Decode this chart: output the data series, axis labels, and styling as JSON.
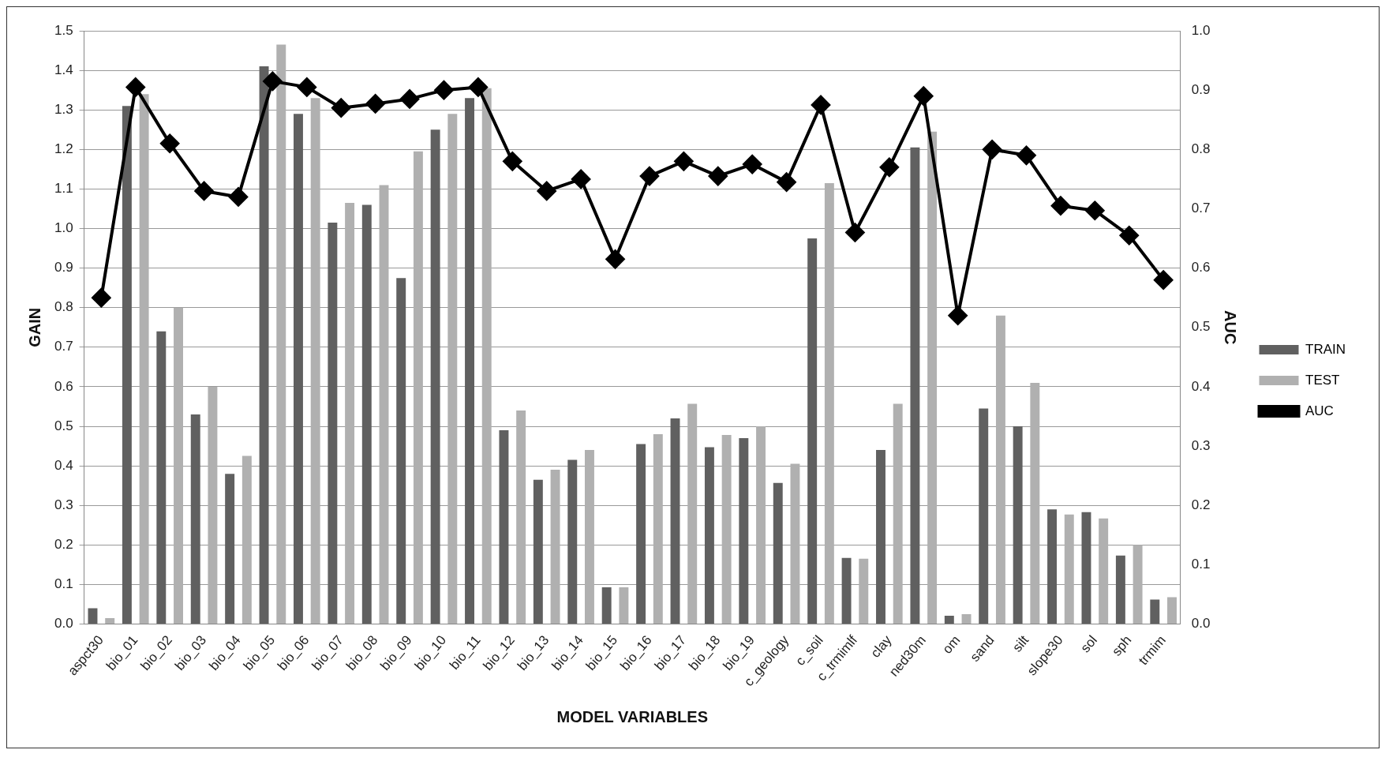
{
  "chart_data": {
    "type": "bar",
    "xlabel": "MODEL VARIABLES",
    "ylabel": "GAIN",
    "y2label": "AUC",
    "categories": [
      "aspct30",
      "bio_01",
      "bio_02",
      "bio_03",
      "bio_04",
      "bio_05",
      "bio_06",
      "bio_07",
      "bio_08",
      "bio_09",
      "bio_10",
      "bio_11",
      "bio_12",
      "bio_13",
      "bio_14",
      "bio_15",
      "bio_16",
      "bio_17",
      "bio_18",
      "bio_19",
      "c_geology",
      "c_soil",
      "c_trmimlf",
      "clay",
      "ned30m",
      "om",
      "sand",
      "silt",
      "slope30",
      "sol",
      "sph",
      "trmim"
    ],
    "series": [
      {
        "name": "TRAIN",
        "color": "#606060",
        "values": [
          0.04,
          1.31,
          0.74,
          0.53,
          0.38,
          1.41,
          1.29,
          1.015,
          1.06,
          0.875,
          1.25,
          1.33,
          0.49,
          0.365,
          0.415,
          0.093,
          0.455,
          0.52,
          0.447,
          0.47,
          0.357,
          0.975,
          0.167,
          0.44,
          1.205,
          0.021,
          0.545,
          0.5,
          0.29,
          0.283,
          0.173,
          0.062
        ]
      },
      {
        "name": "TEST",
        "color": "#b0b0b0",
        "values": [
          0.015,
          1.34,
          0.8,
          0.6,
          0.425,
          1.465,
          1.33,
          1.065,
          1.11,
          1.195,
          1.29,
          1.355,
          0.54,
          0.39,
          0.44,
          0.093,
          0.48,
          0.557,
          0.478,
          0.5,
          0.405,
          1.115,
          0.165,
          0.557,
          1.245,
          0.025,
          0.78,
          0.61,
          0.277,
          0.267,
          0.2,
          0.068
        ]
      },
      {
        "name": "AUC",
        "type": "line",
        "axis": "y2",
        "color": "#000000",
        "values": [
          0.55,
          0.905,
          0.81,
          0.73,
          0.72,
          0.915,
          0.905,
          0.87,
          0.877,
          0.885,
          0.9,
          0.905,
          0.78,
          0.73,
          0.75,
          0.615,
          0.755,
          0.78,
          0.755,
          0.775,
          0.745,
          0.875,
          0.66,
          0.77,
          0.89,
          0.52,
          0.8,
          0.79,
          0.705,
          0.697,
          0.655,
          0.58
        ]
      }
    ],
    "ylim": [
      0,
      1.5
    ],
    "yticks": [
      {
        "value": 0,
        "label": "0.0"
      },
      0.1,
      0.2,
      0.3,
      0.4,
      0.5,
      0.6,
      0.7,
      0.8,
      0.9,
      {
        "value": 1,
        "label": "1.0"
      },
      1.1,
      1.2,
      1.3,
      1.4,
      1.5
    ],
    "y2lim": [
      0,
      1
    ],
    "y2ticks": [
      {
        "value": 0,
        "label": "0.0"
      },
      0.1,
      0.2,
      0.3,
      0.4,
      0.5,
      0.6,
      0.7,
      0.8,
      0.9,
      {
        "value": 1,
        "label": "1.0"
      }
    ],
    "grid": "y",
    "legend": "right",
    "marker": "diamond",
    "line_style": "solid"
  }
}
